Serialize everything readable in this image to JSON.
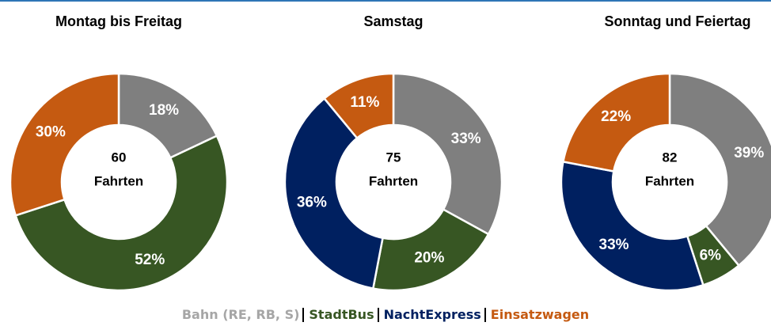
{
  "chart_data": [
    {
      "type": "pie",
      "title": "Montag bis Freitag",
      "categories": [
        "Bahn (RE, RB, S)",
        "StadtBus",
        "Einsatzwagen"
      ],
      "colors": [
        "#7f7f7f",
        "#375623",
        "#c55a11"
      ],
      "values": [
        18,
        52,
        30
      ],
      "value_labels": [
        "18%",
        "52%",
        "30%"
      ],
      "total": 60,
      "total_label": "Fahrten"
    },
    {
      "type": "pie",
      "title": "Samstag",
      "categories": [
        "Bahn (RE, RB, S)",
        "StadtBus",
        "NachtExpress",
        "Einsatzwagen"
      ],
      "colors": [
        "#7f7f7f",
        "#375623",
        "#002060",
        "#c55a11"
      ],
      "values": [
        33,
        20,
        36,
        11
      ],
      "value_labels": [
        "33%",
        "20%",
        "36%",
        "11%"
      ],
      "total": 75,
      "total_label": "Fahrten"
    },
    {
      "type": "pie",
      "title": "Sonntag und Feiertag",
      "categories": [
        "Bahn (RE, RB, S)",
        "StadtBus",
        "NachtExpress",
        "Einsatzwagen"
      ],
      "colors": [
        "#7f7f7f",
        "#375623",
        "#002060",
        "#c55a11"
      ],
      "values": [
        39,
        6,
        33,
        22
      ],
      "value_labels": [
        "39%",
        "6%",
        "33%",
        "22%"
      ],
      "total": 82,
      "total_label": "Fahrten"
    }
  ]
}
